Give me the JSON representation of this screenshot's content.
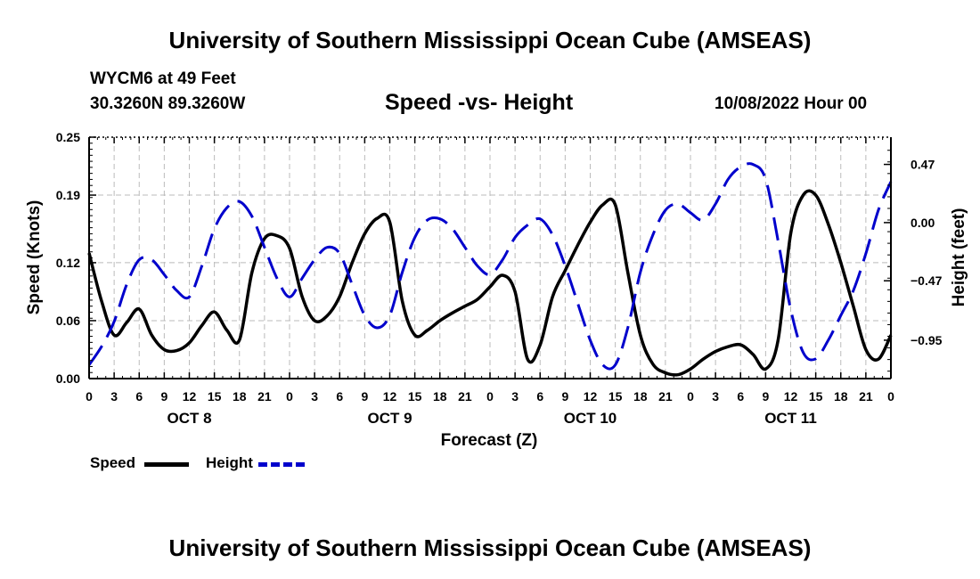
{
  "header": {
    "title": "University of Southern Mississippi Ocean Cube (AMSEAS)",
    "station": "WYCM6 at 49 Feet",
    "coords": "30.3260N  89.3260W",
    "chart_title": "Speed -vs- Height",
    "date": "10/08/2022 Hour 00"
  },
  "footer": {
    "title": "University of Southern Mississippi Ocean Cube (AMSEAS)"
  },
  "legend": {
    "speed_label": "Speed",
    "height_label": "Height",
    "speed_color": "#000000",
    "height_color": "#0000cc"
  },
  "chart_data": {
    "type": "line",
    "title": "Speed -vs- Height",
    "xlabel": "Forecast (Z)",
    "ylabel_left": "Speed (Knots)",
    "ylabel_right": "Height (feet)",
    "xlim": [
      0,
      96
    ],
    "ylim_left": [
      0,
      0.25
    ],
    "ylim_right": [
      -1.26,
      0.69
    ],
    "y_ticks_left": [
      0,
      0.06,
      0.12,
      0.19,
      0.25
    ],
    "y_tick_labels_left": [
      "0.00",
      "0.06",
      "0.12",
      "0.19",
      "0.25"
    ],
    "y_ticks_right": [
      0.47,
      0.0,
      -0.47,
      -0.95
    ],
    "y_tick_labels_right": [
      "0.47",
      "0.00",
      "−0.47",
      "−0.95"
    ],
    "x_ticks": [
      0,
      3,
      6,
      9,
      12,
      15,
      18,
      21,
      24,
      27,
      30,
      33,
      36,
      39,
      42,
      45,
      48,
      51,
      54,
      57,
      60,
      63,
      66,
      69,
      72,
      75,
      78,
      81,
      84,
      87,
      90,
      93,
      96
    ],
    "x_tick_labels": [
      "0",
      "3",
      "6",
      "9",
      "12",
      "15",
      "18",
      "21",
      "0",
      "3",
      "6",
      "9",
      "12",
      "15",
      "18",
      "21",
      "0",
      "3",
      "6",
      "9",
      "12",
      "15",
      "18",
      "21",
      "0",
      "3",
      "6",
      "9",
      "12",
      "15",
      "18",
      "21",
      "0"
    ],
    "day_labels": [
      {
        "x": 12,
        "label": "OCT 8"
      },
      {
        "x": 36,
        "label": "OCT 9"
      },
      {
        "x": 60,
        "label": "OCT 10"
      },
      {
        "x": 84,
        "label": "OCT 11"
      }
    ],
    "grid": true,
    "series": [
      {
        "name": "Speed",
        "axis": "left",
        "color": "#000000",
        "dash": "solid",
        "x": [
          0,
          1.5,
          3,
          4.5,
          6,
          7.5,
          9,
          10.5,
          12,
          13.5,
          15,
          16.5,
          18,
          19.5,
          21,
          22.5,
          24,
          25.5,
          27,
          28.5,
          30,
          31.5,
          33,
          34.5,
          36,
          37.5,
          39,
          40.5,
          42,
          43.5,
          45,
          46.5,
          48,
          49.5,
          51,
          52.5,
          54,
          55.5,
          57,
          58.5,
          60,
          61.5,
          63,
          64.5,
          66,
          67.5,
          69,
          70.5,
          72,
          73.5,
          75,
          76.5,
          78,
          79.5,
          81,
          82.5,
          84,
          85.5,
          87,
          88.5,
          90,
          91.5,
          93,
          94.5,
          96
        ],
        "y": [
          0.13,
          0.08,
          0.045,
          0.058,
          0.072,
          0.045,
          0.03,
          0.029,
          0.037,
          0.055,
          0.069,
          0.05,
          0.04,
          0.11,
          0.145,
          0.148,
          0.135,
          0.085,
          0.06,
          0.065,
          0.085,
          0.12,
          0.15,
          0.166,
          0.162,
          0.08,
          0.045,
          0.05,
          0.06,
          0.068,
          0.075,
          0.082,
          0.095,
          0.107,
          0.09,
          0.02,
          0.035,
          0.085,
          0.112,
          0.138,
          0.162,
          0.18,
          0.18,
          0.11,
          0.045,
          0.015,
          0.006,
          0.004,
          0.01,
          0.02,
          0.028,
          0.033,
          0.035,
          0.025,
          0.01,
          0.04,
          0.15,
          0.19,
          0.19,
          0.16,
          0.12,
          0.075,
          0.03,
          0.02,
          0.045
        ]
      },
      {
        "name": "Height",
        "axis": "right",
        "color": "#0000cc",
        "dash": "dashed",
        "x": [
          0,
          1.5,
          3,
          4.5,
          6,
          7.5,
          9,
          10.5,
          12,
          13.5,
          15,
          16.5,
          18,
          19.5,
          21,
          22.5,
          24,
          25.5,
          27,
          28.5,
          30,
          31.5,
          33,
          34.5,
          36,
          37.5,
          39,
          40.5,
          42,
          43.5,
          45,
          46.5,
          48,
          49.5,
          51,
          52.5,
          54,
          55.5,
          57,
          58.5,
          60,
          61.5,
          63,
          64.5,
          66,
          67.5,
          69,
          70.5,
          72,
          73.5,
          75,
          76.5,
          78,
          79.5,
          81,
          82.5,
          84,
          85.5,
          87,
          88.5,
          90,
          91.5,
          93,
          94.5,
          96
        ],
        "y": [
          -1.15,
          -1.0,
          -0.8,
          -0.5,
          -0.3,
          -0.3,
          -0.42,
          -0.55,
          -0.6,
          -0.35,
          -0.05,
          0.12,
          0.17,
          0.05,
          -0.2,
          -0.45,
          -0.6,
          -0.45,
          -0.3,
          -0.2,
          -0.25,
          -0.5,
          -0.75,
          -0.85,
          -0.75,
          -0.4,
          -0.12,
          0.02,
          0.03,
          -0.05,
          -0.2,
          -0.35,
          -0.42,
          -0.3,
          -0.12,
          -0.02,
          0.03,
          -0.1,
          -0.35,
          -0.65,
          -0.95,
          -1.15,
          -1.15,
          -0.85,
          -0.4,
          -0.1,
          0.1,
          0.15,
          0.08,
          0.02,
          0.15,
          0.35,
          0.45,
          0.47,
          0.35,
          -0.15,
          -0.7,
          -1.05,
          -1.1,
          -0.95,
          -0.75,
          -0.55,
          -0.25,
          0.1,
          0.33
        ]
      }
    ]
  }
}
